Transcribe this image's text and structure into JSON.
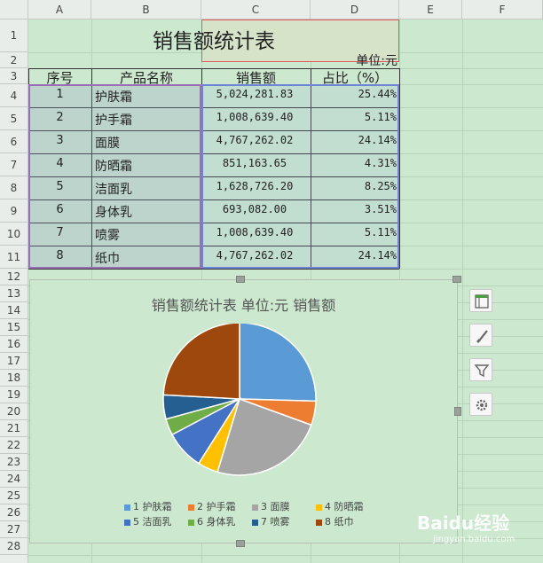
{
  "columns": [
    "A",
    "B",
    "C",
    "D",
    "E",
    "F"
  ],
  "rows": [
    "1",
    "2",
    "3",
    "4",
    "5",
    "6",
    "7",
    "8",
    "9",
    "10",
    "11",
    "12",
    "13",
    "14",
    "15",
    "16",
    "17",
    "18",
    "19",
    "20",
    "21",
    "22",
    "23",
    "24",
    "25",
    "26",
    "27",
    "28"
  ],
  "sheet": {
    "title": "销售额统计表",
    "unit": "单位:元",
    "headers": [
      "序号",
      "产品名称",
      "销售额",
      "占比（%）"
    ],
    "data": [
      [
        "1",
        "护肤霜",
        "5,024,281.83",
        "25.44%"
      ],
      [
        "2",
        "护手霜",
        "1,008,639.40",
        "5.11%"
      ],
      [
        "3",
        "面膜",
        "4,767,262.02",
        "24.14%"
      ],
      [
        "4",
        "防晒霜",
        "851,163.65",
        "4.31%"
      ],
      [
        "5",
        "洁面乳",
        "1,628,726.20",
        "8.25%"
      ],
      [
        "6",
        "身体乳",
        "693,082.00",
        "3.51%"
      ],
      [
        "7",
        "喷雾",
        "1,008,639.40",
        "5.11%"
      ],
      [
        "8",
        "纸巾",
        "4,767,262.02",
        "24.14%"
      ]
    ]
  },
  "chart_data": {
    "type": "pie",
    "title": "销售额统计表 单位:元 销售额",
    "categories": [
      "1 护肤霜",
      "2 护手霜",
      "3 面膜",
      "4 防晒霜",
      "5 洁面乳",
      "6 身体乳",
      "7 喷雾",
      "8 纸巾"
    ],
    "values": [
      25.44,
      5.11,
      24.14,
      4.31,
      8.25,
      3.51,
      5.11,
      24.14
    ],
    "colors": [
      "#5b9bd5",
      "#ed7d31",
      "#a5a5a5",
      "#ffc000",
      "#4472c4",
      "#70ad47",
      "#255e91",
      "#9e480e"
    ],
    "legend": "bottom"
  },
  "side_buttons": [
    "chart-elements-icon",
    "brush-style-icon",
    "filter-icon",
    "settings-icon"
  ],
  "watermark": {
    "text": "Baidu经验",
    "sub": "jingyan.baidu.com"
  }
}
